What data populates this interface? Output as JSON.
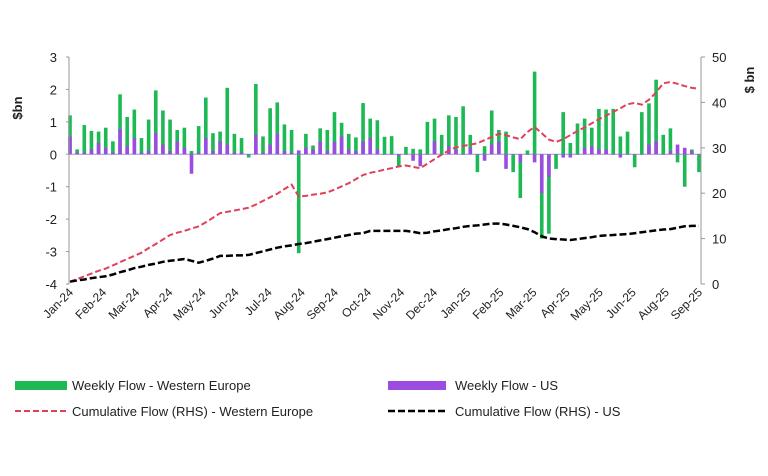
{
  "chart_data": {
    "type": "bar",
    "ylabel_left": "$bn",
    "ylabel_right": "$ bn",
    "ylim_left": [
      -4,
      3
    ],
    "ylim_right": [
      0,
      50
    ],
    "yticks_left": [
      "3",
      "2",
      "1",
      "0",
      "-1",
      "-2",
      "-3",
      "-4"
    ],
    "yticks_right": [
      "50",
      "40",
      "30",
      "20",
      "10",
      "0"
    ],
    "x_tick_labels": [
      "Jan-24",
      "Feb-24",
      "Mar-24",
      "Apr-24",
      "May-24",
      "Jun-24",
      "Jul-24",
      "Aug-24",
      "Sep-24",
      "Oct-24",
      "Nov-24",
      "Dec-24",
      "Jan-25",
      "Feb-25",
      "Mar-25",
      "Apr-25",
      "May-25",
      "Jun-25",
      "Aug-25",
      "Sep-25"
    ],
    "grid": false,
    "legend_placement": "bottom",
    "series": [
      {
        "name": "Weekly Flow - Western Europe",
        "type": "bar",
        "axis": "left",
        "color": "#1db954",
        "values": [
          1.2,
          0.15,
          0.9,
          0.72,
          0.7,
          0.82,
          0.4,
          1.85,
          1.15,
          1.38,
          0.5,
          1.07,
          1.97,
          1.35,
          1.07,
          0.75,
          0.82,
          0.1,
          0.87,
          1.75,
          0.65,
          0.7,
          2.05,
          0.63,
          0.5,
          -0.1,
          2.17,
          0.55,
          1.42,
          1.6,
          0.92,
          0.75,
          -3.05,
          0.63,
          0.27,
          0.8,
          0.75,
          1.3,
          0.97,
          0.63,
          0.52,
          1.58,
          1.1,
          1.05,
          0.54,
          0.56,
          -0.4,
          0.23,
          0.17,
          0.15,
          1.0,
          1.1,
          0.6,
          1.2,
          1.15,
          1.48,
          0.6,
          -0.55,
          0.25,
          1.35,
          0.75,
          0.7,
          -0.55,
          -1.35,
          0.12,
          2.55,
          -2.6,
          -2.45,
          -0.45,
          1.3,
          0.35,
          0.95,
          1.1,
          0.82,
          1.4,
          1.38,
          1.4,
          0.55,
          0.7,
          -0.4,
          1.3,
          1.57,
          2.3,
          0.6,
          0.8,
          -0.25,
          -1.0,
          0.15,
          -0.55
        ]
      },
      {
        "name": "Weekly Flow - US",
        "type": "bar",
        "axis": "left",
        "color": "#9b4de0",
        "values": [
          0.55,
          0.05,
          0.05,
          0.15,
          0.35,
          0.2,
          0.05,
          0.78,
          0.25,
          0.5,
          0.05,
          0.1,
          0.65,
          0.3,
          0.1,
          0.4,
          0.2,
          -0.6,
          0.05,
          0.5,
          0.1,
          0.4,
          0.3,
          0.05,
          0.05,
          0,
          0.6,
          0.05,
          0.3,
          0.63,
          0.1,
          0.05,
          0.12,
          0.2,
          0.15,
          0.4,
          0.1,
          0.38,
          0.55,
          0.15,
          0.1,
          0.4,
          0.5,
          0.15,
          0,
          0,
          -0.05,
          0,
          -0.2,
          -0.37,
          0,
          0.4,
          0,
          0.25,
          0.15,
          0,
          0.2,
          0,
          -0.2,
          0.3,
          0.4,
          -0.45,
          0,
          -0.25,
          0,
          -0.25,
          -1.2,
          -0.7,
          0,
          -0.1,
          -0.1,
          0,
          0.2,
          0.25,
          0.15,
          0.15,
          0,
          -0.1,
          0,
          0,
          0,
          0.3,
          0.4,
          0,
          0.1,
          0.3,
          0.2,
          0.1,
          0
        ]
      },
      {
        "name": "Cumulative Flow (RHS) - Western Europe",
        "type": "line",
        "axis": "right",
        "color": "#e0405a",
        "dash": "dashed",
        "values": [
          0.5,
          1.1,
          1.7,
          2.3,
          2.9,
          3.4,
          4.1,
          4.8,
          5.5,
          6.2,
          6.9,
          7.9,
          8.8,
          9.8,
          10.8,
          11.3,
          11.7,
          12.2,
          12.7,
          13.6,
          14.6,
          15.6,
          15.9,
          16.2,
          16.5,
          16.8,
          17.5,
          18.3,
          19.1,
          19.9,
          20.9,
          21.9,
          19.3,
          19.4,
          19.7,
          19.9,
          20.2,
          20.8,
          21.5,
          22.2,
          23.1,
          24,
          24.5,
          24.8,
          25.2,
          25.5,
          25.9,
          26.1,
          25.8,
          25.5,
          26.5,
          27.5,
          28.5,
          29.4,
          30.1,
          30.4,
          30.7,
          31,
          31.7,
          32.4,
          33.1,
          32.8,
          32.3,
          31.9,
          33.5,
          34.6,
          33.2,
          31.8,
          31.3,
          31.9,
          32.8,
          33.7,
          34.5,
          35.4,
          36.3,
          37.1,
          37.9,
          38.7,
          39.6,
          39.9,
          39.5,
          40.6,
          42.2,
          44.2,
          44.5,
          44.1,
          43.6,
          43.2,
          43
        ]
      },
      {
        "name": "Cumulative Flow (RHS) - US",
        "type": "line",
        "axis": "right",
        "color": "#000000",
        "dash": "dashed",
        "values": [
          0.5,
          0.8,
          1,
          1.3,
          1.5,
          1.7,
          2.1,
          2.6,
          3,
          3.5,
          3.8,
          4.2,
          4.5,
          4.9,
          5.1,
          5.3,
          5.5,
          5.1,
          4.7,
          5.1,
          5.6,
          6.2,
          6.2,
          6.3,
          6.3,
          6.4,
          6.8,
          7.2,
          7.6,
          8,
          8.3,
          8.5,
          8.8,
          9,
          9.3,
          9.6,
          9.9,
          10.2,
          10.5,
          10.8,
          11.1,
          11.2,
          11.7,
          11.7,
          11.7,
          11.7,
          11.7,
          11.7,
          11.5,
          11.2,
          11.3,
          11.6,
          11.8,
          12.1,
          12.3,
          12.6,
          12.8,
          12.9,
          13.1,
          13.3,
          13.3,
          13.1,
          12.8,
          12.5,
          12.1,
          11.4,
          10.5,
          10,
          9.9,
          9.8,
          9.7,
          9.9,
          10.1,
          10.3,
          10.6,
          10.7,
          10.8,
          10.9,
          11,
          11.2,
          11.4,
          11.6,
          11.8,
          12,
          12.1,
          12.4,
          12.7,
          12.8,
          12.8
        ]
      }
    ]
  }
}
